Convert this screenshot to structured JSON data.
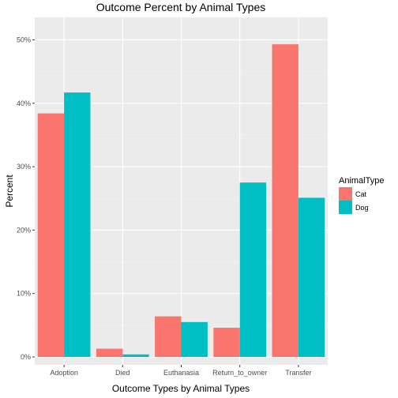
{
  "chart_data": {
    "type": "bar",
    "title": "Outcome Percent by Animal Types",
    "xlabel": "Outcome Types by Animal Types",
    "ylabel": "Percent",
    "categories": [
      "Adoption",
      "Died",
      "Euthanasia",
      "Return_to_owner",
      "Transfer"
    ],
    "series": [
      {
        "name": "Cat",
        "values": [
          38.4,
          1.3,
          6.4,
          4.6,
          49.3
        ],
        "color": "#F8766D"
      },
      {
        "name": "Dog",
        "values": [
          41.7,
          0.4,
          5.5,
          27.5,
          25.1
        ],
        "color": "#00BFC4"
      }
    ],
    "ylim": [
      0,
      52.3
    ],
    "yticks": [
      0,
      10,
      20,
      30,
      40,
      50
    ],
    "ytick_labels": [
      "0%",
      "10%",
      "20%",
      "30%",
      "40%",
      "50%"
    ],
    "grid": true,
    "legend": {
      "title": "AnimalType",
      "position": "right"
    },
    "colors": {
      "panel_background": "#EBEBEB",
      "grid_major": "#FFFFFF",
      "grid_minor": "#F3F3F3"
    }
  }
}
